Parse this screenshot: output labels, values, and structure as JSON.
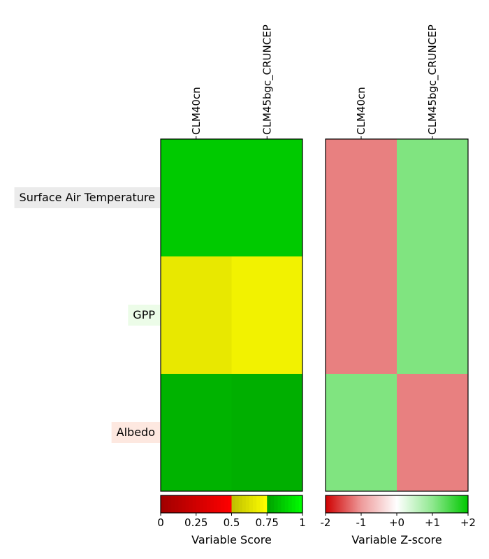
{
  "chart_data": [
    {
      "type": "heatmap",
      "rows": [
        "Surface Air Temperature",
        "GPP",
        "Albedo"
      ],
      "columns": [
        "CLM40cn",
        "CLM45bgc_CRUNCEP"
      ],
      "values": [
        [
          0.86,
          0.86
        ],
        [
          0.66,
          0.7
        ],
        [
          0.8,
          0.79
        ]
      ],
      "colorbar": {
        "label": "Variable Score",
        "ticks": [
          "0",
          "0.25",
          "0.5",
          "0.75",
          "1"
        ],
        "range": [
          0,
          1
        ]
      }
    },
    {
      "type": "heatmap",
      "rows": [
        "Surface Air Temperature",
        "GPP",
        "Albedo"
      ],
      "columns": [
        "CLM40cn",
        "CLM45bgc_CRUNCEP"
      ],
      "values": [
        [
          -1,
          1
        ],
        [
          -1,
          1
        ],
        [
          1,
          -1
        ]
      ],
      "colorbar": {
        "label": "Variable Z-score",
        "ticks": [
          "-2",
          "-1",
          "+0",
          "+1",
          "+2"
        ],
        "range": [
          -2,
          2
        ]
      }
    }
  ],
  "row_label_colors": [
    "#ebebeb",
    "#ecfce8",
    "#fde8e0"
  ]
}
